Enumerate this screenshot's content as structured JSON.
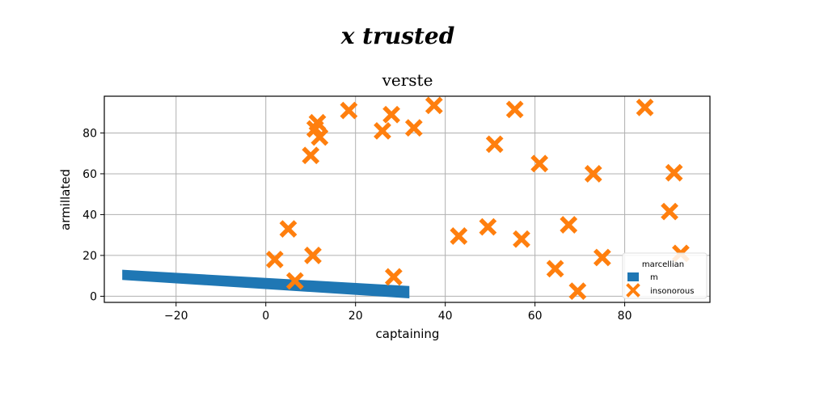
{
  "figure": {
    "suptitle": "x trusted"
  },
  "chart_data": {
    "type": "scatter",
    "title": "verste",
    "xlabel": "captaining",
    "ylabel": "armillated",
    "xlim": [
      -36,
      99
    ],
    "ylim": [
      -3,
      98
    ],
    "xticks": [
      -20,
      0,
      20,
      40,
      60,
      80
    ],
    "yticks": [
      0,
      20,
      40,
      60,
      80
    ],
    "grid": true,
    "legend": {
      "title": "marcellian",
      "position": "lower-right"
    },
    "series": [
      {
        "name": "m",
        "kind": "band",
        "color": "#1f77b4",
        "x": [
          -32,
          32
        ],
        "upper": [
          13,
          5
        ],
        "lower": [
          8,
          -1
        ]
      },
      {
        "name": "insonorous",
        "kind": "x-marker",
        "color": "#ff7f0e",
        "points": [
          [
            2,
            18
          ],
          [
            5,
            33
          ],
          [
            6.5,
            7.5
          ],
          [
            10,
            69
          ],
          [
            10.5,
            20
          ],
          [
            11,
            82
          ],
          [
            11.5,
            85
          ],
          [
            12,
            78
          ],
          [
            18.5,
            91
          ],
          [
            26,
            81
          ],
          [
            28,
            89
          ],
          [
            28.5,
            9.5
          ],
          [
            33,
            82.5
          ],
          [
            37.5,
            93.5
          ],
          [
            43,
            29.5
          ],
          [
            49.5,
            34
          ],
          [
            51,
            74.5
          ],
          [
            55.5,
            91.5
          ],
          [
            57,
            28
          ],
          [
            61,
            65
          ],
          [
            64.5,
            13.5
          ],
          [
            67.5,
            35
          ],
          [
            69.5,
            2.5
          ],
          [
            73,
            60
          ],
          [
            75,
            19
          ],
          [
            84.5,
            92.5
          ],
          [
            90,
            41.5
          ],
          [
            91,
            60.5
          ],
          [
            92.5,
            21
          ]
        ]
      }
    ]
  }
}
